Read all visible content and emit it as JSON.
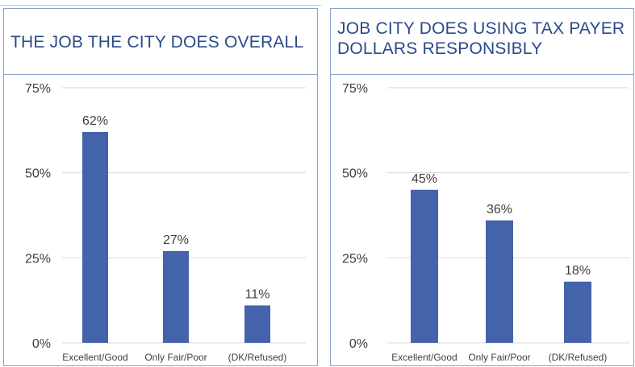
{
  "chart_data": [
    {
      "type": "bar",
      "title": "THE JOB THE CITY DOES OVERALL",
      "categories": [
        "Excellent/Good",
        "Only Fair/Poor",
        "(DK/Refused)"
      ],
      "values": [
        62,
        27,
        11
      ],
      "value_labels": [
        "62%",
        "27%",
        "11%"
      ],
      "ylim": [
        0,
        75
      ],
      "yticks": [
        0,
        25,
        50,
        75
      ],
      "ytick_labels": [
        "0%",
        "25%",
        "50%",
        "75%"
      ],
      "grid": true,
      "bar_color": "#4563aa"
    },
    {
      "type": "bar",
      "title": "JOB CITY DOES USING TAX PAYER DOLLARS RESPONSIBLY",
      "categories": [
        "Excellent/Good",
        "Only Fair/Poor",
        "(DK/Refused)"
      ],
      "values": [
        45,
        36,
        18
      ],
      "value_labels": [
        "45%",
        "36%",
        "18%"
      ],
      "ylim": [
        0,
        75
      ],
      "yticks": [
        0,
        25,
        50,
        75
      ],
      "ytick_labels": [
        "0%",
        "25%",
        "50%",
        "75%"
      ],
      "grid": true,
      "bar_color": "#4563aa"
    }
  ]
}
